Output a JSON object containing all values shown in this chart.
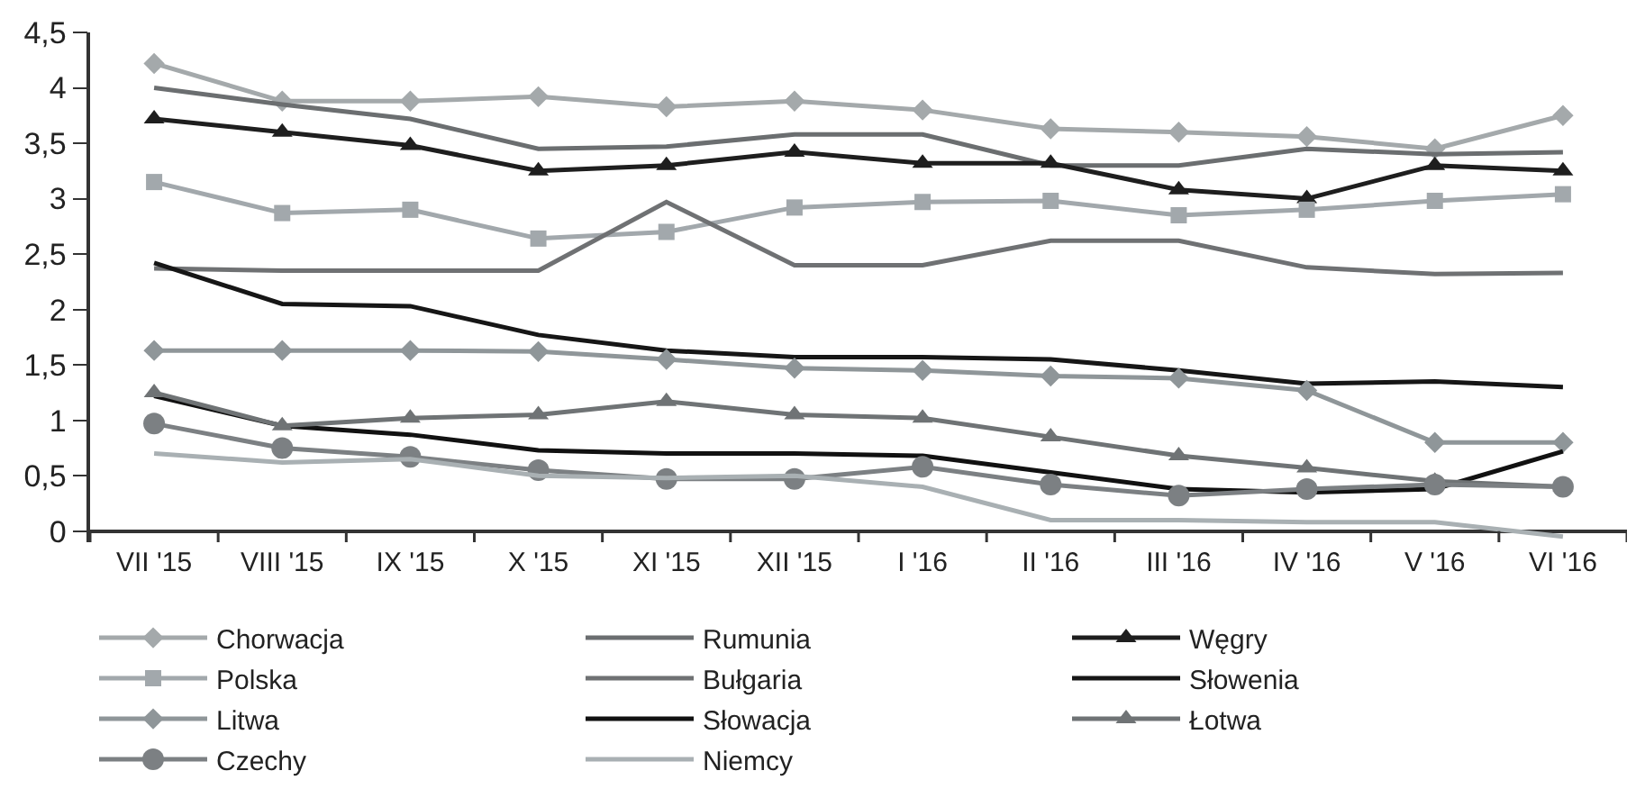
{
  "chart_data": {
    "type": "line",
    "categories": [
      "VII '15",
      "VIII '15",
      "IX '15",
      "X '15",
      "XI '15",
      "XII '15",
      "I '16",
      "II '16",
      "III '16",
      "IV '16",
      "V '16",
      "VI '16"
    ],
    "series": [
      {
        "name": "Chorwacja",
        "color": "#a4a9ab",
        "marker": "diamond",
        "values": [
          4.22,
          3.88,
          3.88,
          3.92,
          3.83,
          3.88,
          3.8,
          3.63,
          3.6,
          3.56,
          3.45,
          3.75
        ]
      },
      {
        "name": "Rumunia",
        "color": "#6b6e70",
        "marker": "none",
        "values": [
          4.0,
          3.85,
          3.72,
          3.45,
          3.47,
          3.58,
          3.58,
          3.3,
          3.3,
          3.45,
          3.4,
          3.42
        ]
      },
      {
        "name": "Węgry",
        "color": "#1e1e1e",
        "marker": "triangle",
        "values": [
          3.72,
          3.6,
          3.48,
          3.25,
          3.3,
          3.42,
          3.32,
          3.32,
          3.08,
          3.0,
          3.3,
          3.25
        ]
      },
      {
        "name": "Polska",
        "color": "#a2a8ac",
        "marker": "square",
        "values": [
          3.15,
          2.87,
          2.9,
          2.64,
          2.7,
          2.92,
          2.97,
          2.98,
          2.85,
          2.9,
          2.98,
          3.04
        ]
      },
      {
        "name": "Bułgaria",
        "color": "#6f7173",
        "marker": "none",
        "values": [
          2.37,
          2.35,
          2.35,
          2.35,
          2.97,
          2.4,
          2.4,
          2.62,
          2.62,
          2.38,
          2.32,
          2.33
        ]
      },
      {
        "name": "Słowenia",
        "color": "#161616",
        "marker": "none",
        "values": [
          2.42,
          2.05,
          2.03,
          1.77,
          1.63,
          1.57,
          1.57,
          1.55,
          1.45,
          1.33,
          1.35,
          1.3
        ]
      },
      {
        "name": "Litwa",
        "color": "#8f9699",
        "marker": "diamond",
        "values": [
          1.63,
          1.63,
          1.63,
          1.62,
          1.55,
          1.47,
          1.45,
          1.4,
          1.38,
          1.27,
          0.8,
          0.8
        ]
      },
      {
        "name": "Słowacja",
        "color": "#111111",
        "marker": "none",
        "values": [
          1.22,
          0.95,
          0.87,
          0.73,
          0.7,
          0.7,
          0.68,
          0.53,
          0.38,
          0.35,
          0.38,
          0.72
        ]
      },
      {
        "name": "Łotwa",
        "color": "#6f7375",
        "marker": "triangle",
        "values": [
          1.25,
          0.95,
          1.02,
          1.05,
          1.17,
          1.05,
          1.02,
          0.85,
          0.68,
          0.57,
          0.45,
          0.4
        ]
      },
      {
        "name": "Czechy",
        "color": "#7c8083",
        "marker": "circle",
        "values": [
          0.97,
          0.75,
          0.67,
          0.55,
          0.47,
          0.47,
          0.58,
          0.42,
          0.32,
          0.38,
          0.42,
          0.4
        ]
      },
      {
        "name": "Niemcy",
        "color": "#a9b0b3",
        "marker": "none",
        "values": [
          0.7,
          0.62,
          0.65,
          0.5,
          0.48,
          0.5,
          0.4,
          0.1,
          0.1,
          0.08,
          0.08,
          -0.05
        ]
      }
    ],
    "ylim": [
      -0.1,
      4.5
    ],
    "yticks": [
      0,
      {
        "value": 0.5,
        "label": "0,5"
      },
      1,
      {
        "value": 1.5,
        "label": "1,5"
      },
      2,
      {
        "value": 2.5,
        "label": "2,5"
      },
      3,
      {
        "value": 3.5,
        "label": "3,5"
      },
      4,
      {
        "value": 4.5,
        "label": "4,5"
      }
    ],
    "grid": false,
    "legend": "bottom",
    "line_style": "solid"
  }
}
